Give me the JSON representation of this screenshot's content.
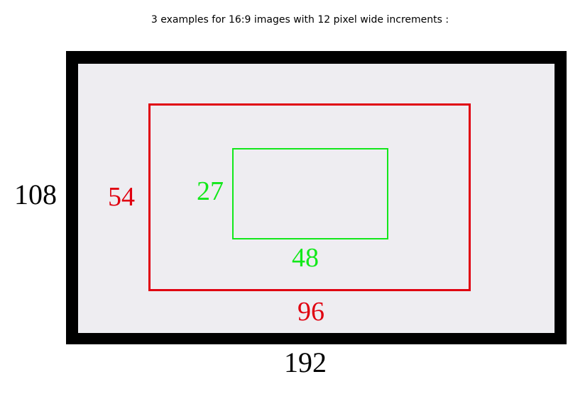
{
  "title": "3 examples for 16:9 images with 12 pixel wide increments :",
  "examples": [
    {
      "width": "192",
      "height": "108",
      "color": "#000000"
    },
    {
      "width": "96",
      "height": "54",
      "color": "#e00010"
    },
    {
      "width": "48",
      "height": "27",
      "color": "#12e81a"
    }
  ]
}
